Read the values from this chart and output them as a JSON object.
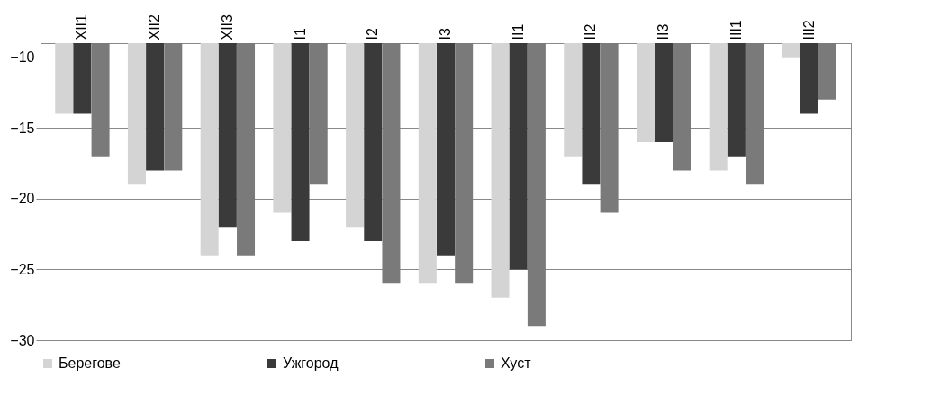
{
  "chart_data": {
    "type": "bar",
    "categories": [
      "XII1",
      "XII2",
      "XII3",
      "I1",
      "I2",
      "I3",
      "II1",
      "II2",
      "II3",
      "III1",
      "III2"
    ],
    "series": [
      {
        "name": "Берегове",
        "color": "#d4d4d4",
        "values": [
          -14,
          -19,
          -24,
          -21,
          -22,
          -26,
          -27,
          -17,
          -16,
          -18,
          -10
        ]
      },
      {
        "name": "Ужгород",
        "color": "#3a3a3a",
        "values": [
          -14,
          -18,
          -22,
          -23,
          -23,
          -24,
          -25,
          -19,
          -16,
          -17,
          -14
        ]
      },
      {
        "name": "Хуст",
        "color": "#7a7a7a",
        "values": [
          -17,
          -18,
          -24,
          -19,
          -26,
          -26,
          -29,
          -21,
          -18,
          -19,
          -13
        ]
      }
    ],
    "ylim": [
      -30,
      -9
    ],
    "yticks": [
      -30,
      -25,
      -20,
      -15,
      -10
    ],
    "grid": "y",
    "legend": "bottom"
  }
}
